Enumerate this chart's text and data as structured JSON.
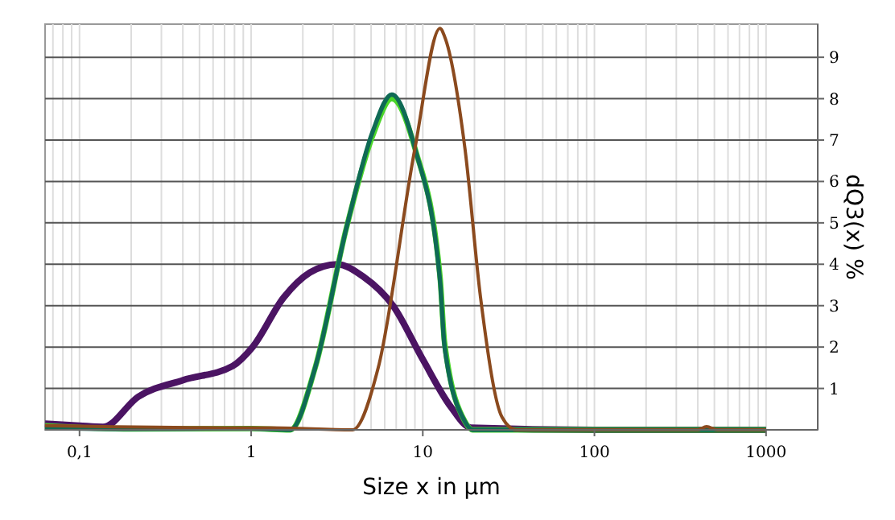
{
  "chart_data": {
    "type": "line",
    "xlabel": "Size x in µm",
    "ylabel": "dQ3(x) %",
    "log": "x",
    "grid": true,
    "marker": "none",
    "line_style": "solid",
    "xlim": [
      0.063,
      2000
    ],
    "ylim": [
      0,
      9.8
    ],
    "xticks": [
      {
        "value": 0.1,
        "label": "0,1"
      },
      1,
      10,
      100,
      1000
    ],
    "yticks": [
      1,
      2,
      3,
      4,
      5,
      6,
      7,
      8,
      9
    ],
    "series": [
      {
        "color": "#4b1463",
        "x": [
          0.063,
          0.1,
          0.137,
          0.22,
          0.4,
          0.78,
          1.02,
          1.55,
          2.2,
          3.16,
          4.5,
          6.7,
          10,
          14.6,
          19.1,
          100,
          1000
        ],
        "values": [
          0.15,
          0.1,
          0.07,
          0.8,
          1.2,
          1.54,
          2.0,
          3.2,
          3.8,
          4.0,
          3.7,
          3.0,
          1.7,
          0.55,
          0.05,
          0,
          0
        ]
      },
      {
        "color": "#4cd62a",
        "x": [
          0.063,
          0.2,
          1.0,
          1.69,
          2.36,
          3.6,
          5.1,
          6.6,
          9.0,
          12.6,
          13.4,
          17.6,
          19.5,
          100,
          1000
        ],
        "values": [
          0.1,
          0.02,
          0.03,
          0,
          1.5,
          4.9,
          7.1,
          8.0,
          6.8,
          3.7,
          2.1,
          0.2,
          0,
          0,
          0
        ]
      },
      {
        "color": "#0f6a55",
        "x": [
          0.063,
          0.2,
          1.0,
          1.69,
          2.36,
          3.6,
          5.1,
          6.6,
          9.0,
          12.6,
          13.4,
          17.6,
          19.5,
          100,
          1000
        ],
        "values": [
          0.05,
          0.02,
          0.03,
          0,
          1.5,
          4.9,
          7.2,
          8.1,
          6.8,
          3.6,
          2.0,
          0.2,
          0,
          0,
          0
        ]
      },
      {
        "color": "#8b4a1e",
        "x": [
          0.063,
          0.7,
          1.3,
          3.9,
          5.5,
          9.0,
          12.6,
          13.4,
          17.6,
          21.7,
          29,
          35,
          100,
          400,
          450,
          520,
          1000
        ],
        "values": [
          0.1,
          0.05,
          0.05,
          0,
          1.5,
          6.8,
          9.7,
          9.5,
          6.8,
          3.2,
          0.3,
          0,
          0,
          0,
          0.08,
          0,
          0
        ]
      }
    ]
  }
}
